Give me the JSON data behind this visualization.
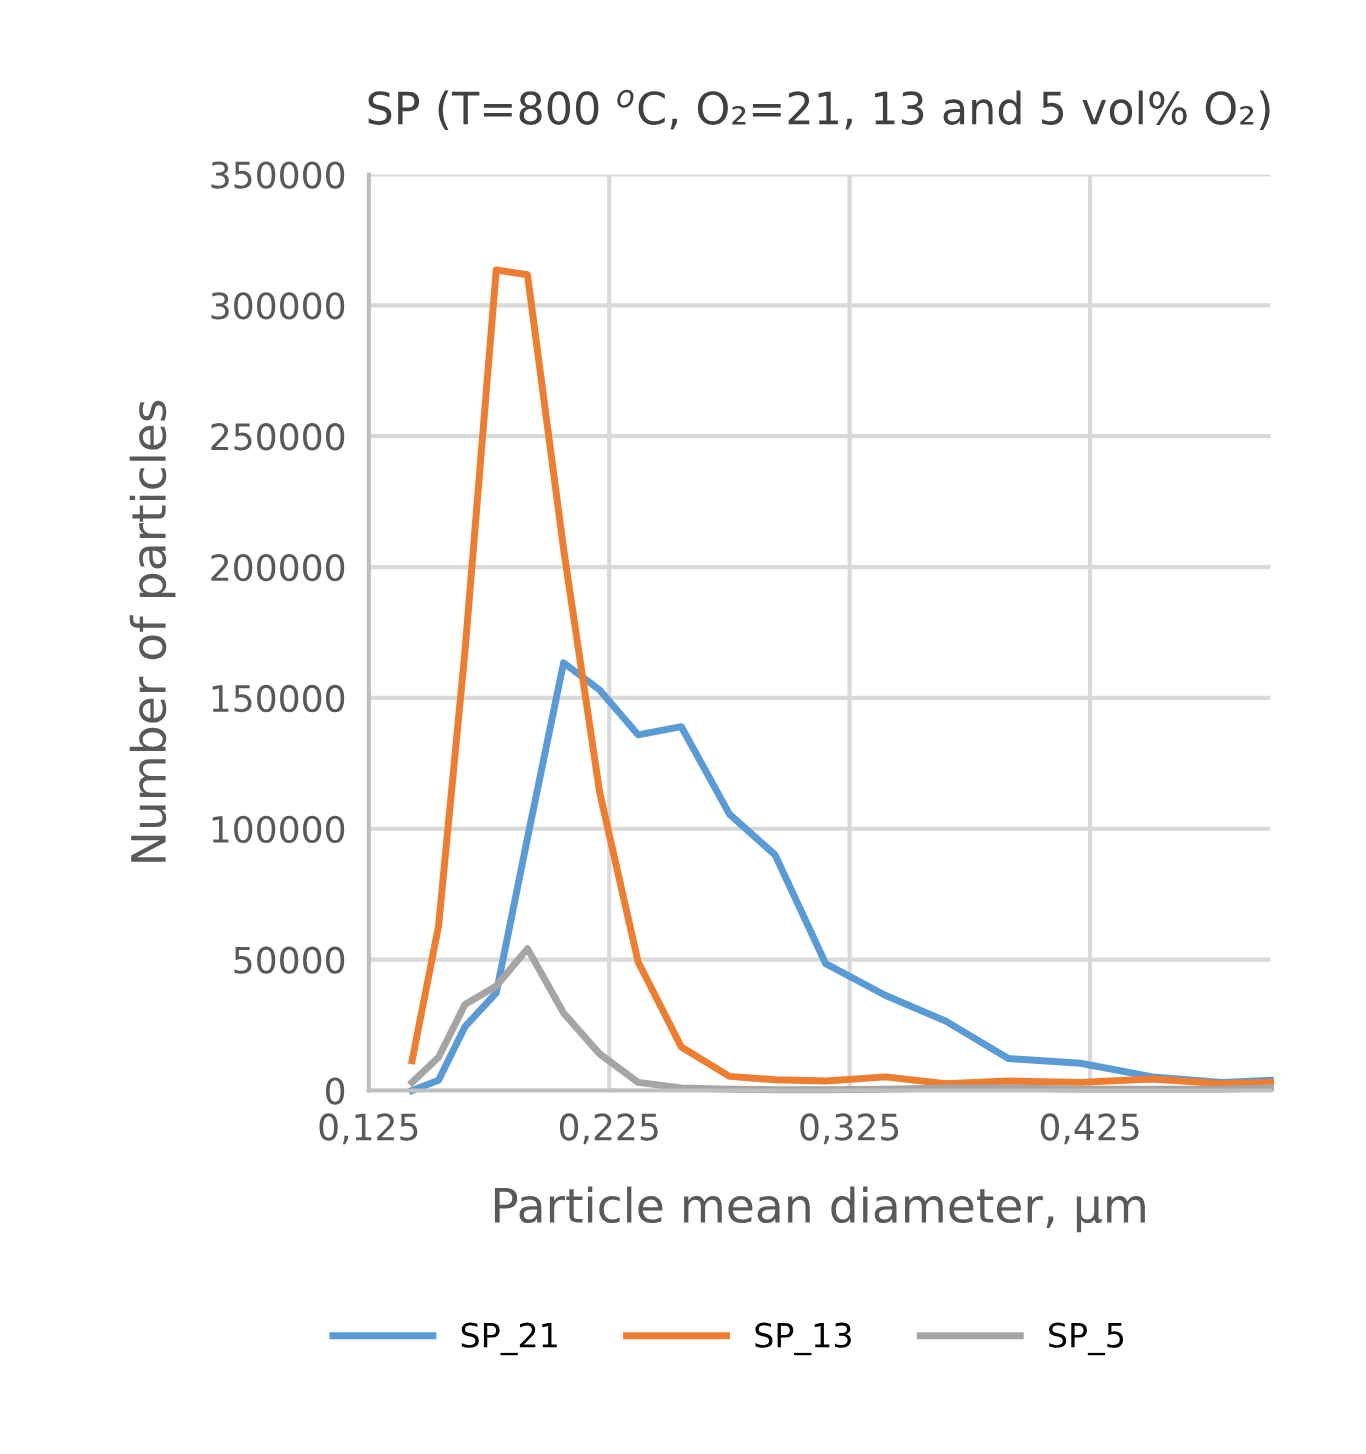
{
  "chart_data": {
    "type": "line",
    "title": "SP (T=800 $^{o}$C, O₂=21, 13 and 5 vol% O₂)",
    "xlabel": "Particle mean diameter, µm",
    "ylabel": "Number of particles",
    "x": [
      0.143,
      0.154,
      0.165,
      0.178,
      0.191,
      0.206,
      0.221,
      0.237,
      0.255,
      0.275,
      0.294,
      0.315,
      0.34,
      0.365,
      0.391,
      0.421,
      0.451,
      0.48,
      0.5
    ],
    "series": [
      {
        "name": "SP_21",
        "color": "#5b9bd5",
        "values": [
          0,
          3900,
          24400,
          37300,
          96500,
          163400,
          153000,
          135900,
          139000,
          105600,
          90000,
          48500,
          36300,
          26500,
          12200,
          10400,
          5200,
          3100,
          3900
        ]
      },
      {
        "name": "SP_13",
        "color": "#ed7d31",
        "values": [
          11400,
          62800,
          167800,
          313500,
          311700,
          207000,
          114000,
          49200,
          16600,
          5400,
          4100,
          3600,
          5200,
          2600,
          3600,
          3100,
          4400,
          2600,
          3100
        ]
      },
      {
        "name": "SP_5",
        "color": "#a5a5a5",
        "values": [
          3100,
          12700,
          32900,
          39900,
          54200,
          29600,
          14000,
          3100,
          1000,
          500,
          300,
          300,
          500,
          1000,
          1000,
          500,
          500,
          500,
          1000
        ]
      }
    ],
    "xlim": [
      0.125,
      0.5
    ],
    "xticks": [
      {
        "value": 0.125,
        "label": "0,125"
      },
      {
        "value": 0.225,
        "label": "0,225"
      },
      {
        "value": 0.325,
        "label": "0,325"
      },
      {
        "value": 0.425,
        "label": "0,425"
      }
    ],
    "ylim": [
      0,
      350000
    ],
    "yticks": [
      0,
      50000,
      100000,
      150000,
      200000,
      250000,
      300000,
      350000
    ],
    "grid": true,
    "legend": "bottom",
    "marker": "none",
    "line_style": "solid"
  }
}
